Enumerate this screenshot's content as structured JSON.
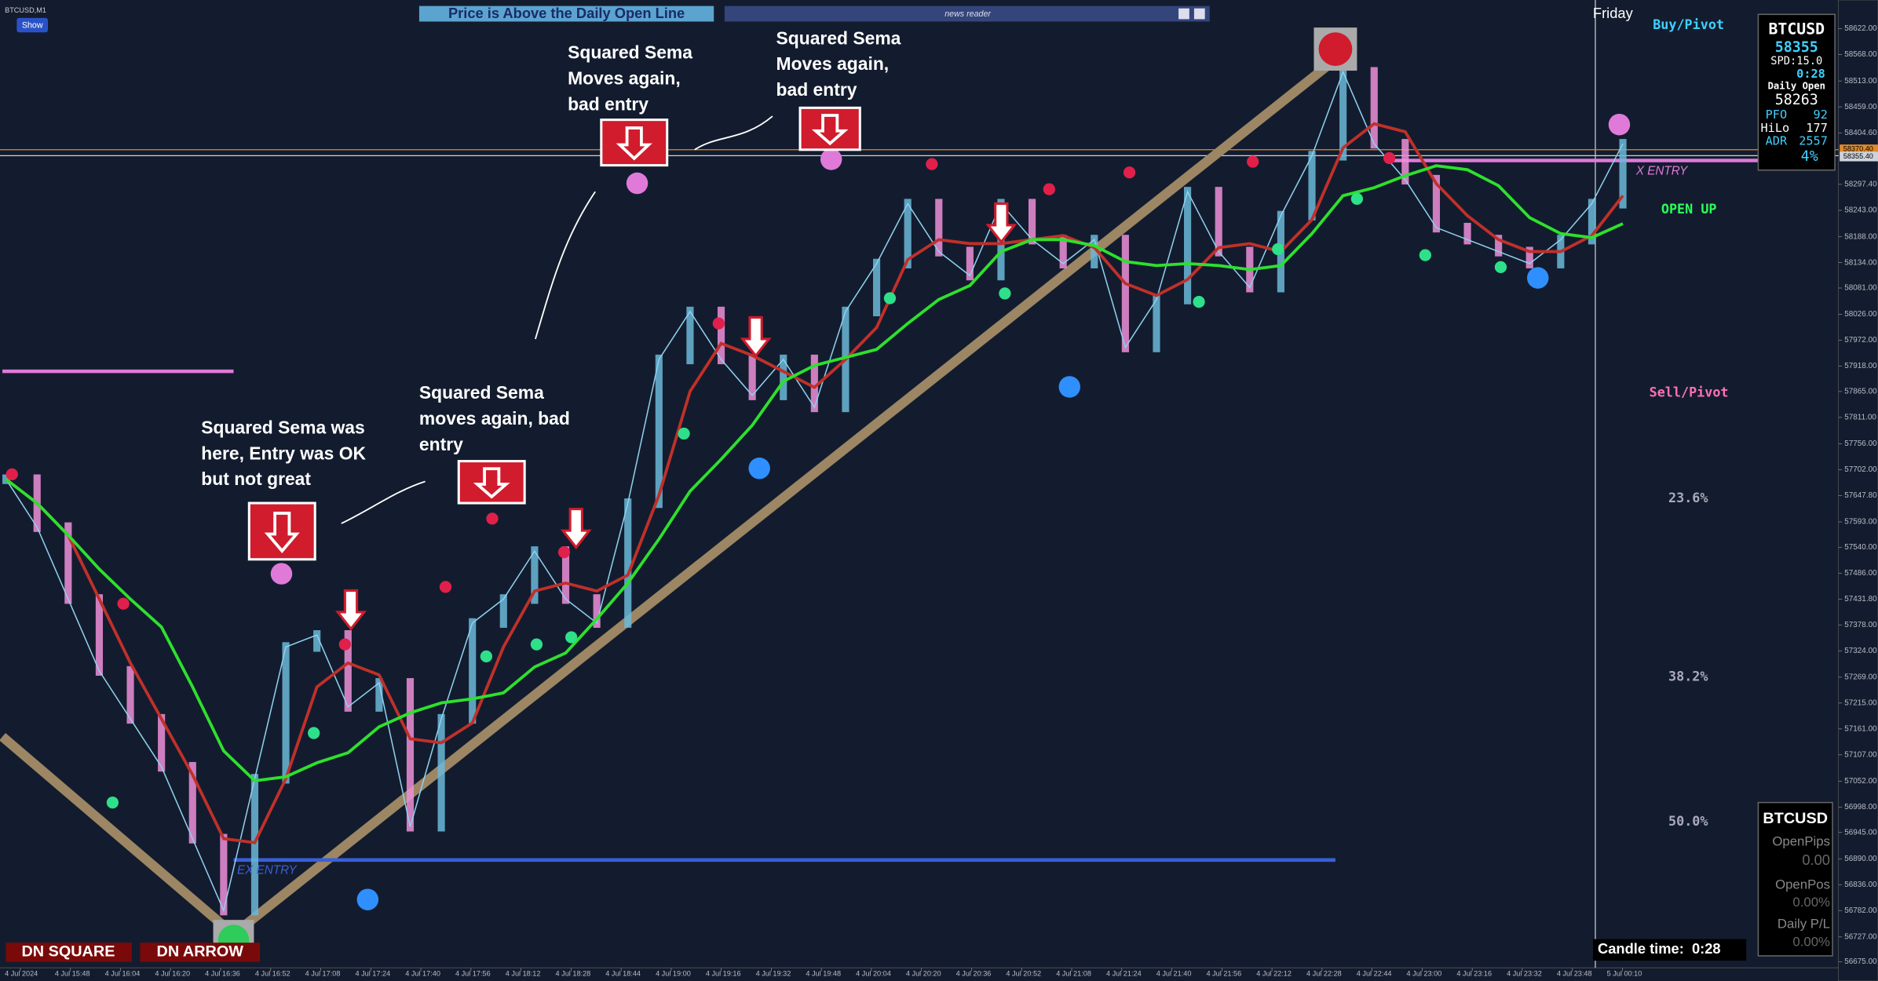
{
  "window": {
    "symbol": "BTCUSD,M1",
    "show_button": "Show",
    "banner": "Price is Above the Daily Open Line",
    "news_reader": "news reader",
    "day": "Friday"
  },
  "chart": {
    "price": [
      57682,
      57582,
      57432,
      57282,
      57182,
      57082,
      56932,
      56782,
      57057,
      57332,
      57357,
      57207,
      57257,
      56957,
      57182,
      57382,
      57432,
      57532,
      57432,
      57382,
      57632,
      57932,
      58032,
      57932,
      57857,
      57932,
      57832,
      58032,
      58132,
      58257,
      58157,
      58107,
      58257,
      58182,
      58132,
      58182,
      57957,
      58057,
      58282,
      58157,
      58082,
      58232,
      58357,
      58532,
      58382,
      58307,
      58207,
      58182,
      58157,
      58132,
      58182,
      58257,
      58382
    ],
    "yticks": [
      {
        "value": 58622,
        "label": "58622.00"
      },
      {
        "value": 58568,
        "label": "58568.00"
      },
      {
        "value": 58513,
        "label": "58513.00"
      },
      {
        "value": 58459,
        "label": "58459.00"
      },
      {
        "value": 58404.6,
        "label": "58404.60"
      },
      {
        "value": 58297.4,
        "label": "58297.40"
      },
      {
        "value": 58243,
        "label": "58243.00"
      },
      {
        "value": 58188,
        "label": "58188.00"
      },
      {
        "value": 58134,
        "label": "58134.00"
      },
      {
        "value": 58081,
        "label": "58081.00"
      },
      {
        "value": 58026,
        "label": "58026.00"
      },
      {
        "value": 57972,
        "label": "57972.00"
      },
      {
        "value": 57918,
        "label": "57918.00"
      },
      {
        "value": 57865,
        "label": "57865.00"
      },
      {
        "value": 57811,
        "label": "57811.00"
      },
      {
        "value": 57756,
        "label": "57756.00"
      },
      {
        "value": 57702,
        "label": "57702.00"
      },
      {
        "value": 57647.8,
        "label": "57647.80"
      },
      {
        "value": 57593,
        "label": "57593.00"
      },
      {
        "value": 57540,
        "label": "57540.00"
      },
      {
        "value": 57486,
        "label": "57486.00"
      },
      {
        "value": 57431.8,
        "label": "57431.80"
      },
      {
        "value": 57378,
        "label": "57378.00"
      },
      {
        "value": 57324,
        "label": "57324.00"
      },
      {
        "value": 57269,
        "label": "57269.00"
      },
      {
        "value": 57215,
        "label": "57215.00"
      },
      {
        "value": 57161,
        "label": "57161.00"
      },
      {
        "value": 57107,
        "label": "57107.00"
      },
      {
        "value": 57052,
        "label": "57052.00"
      },
      {
        "value": 56998,
        "label": "56998.00"
      },
      {
        "value": 56945,
        "label": "56945.00"
      },
      {
        "value": 56890,
        "label": "56890.00"
      },
      {
        "value": 56836,
        "label": "56836.00"
      },
      {
        "value": 56782,
        "label": "56782.00"
      },
      {
        "value": 56727,
        "label": "56727.00"
      },
      {
        "value": 56675,
        "label": "56675.00"
      }
    ],
    "xticks": [
      "4 Jul 2024",
      "4 Jul 15:48",
      "4 Jul 16:04",
      "4 Jul 16:20",
      "4 Jul 16:36",
      "4 Jul 16:52",
      "4 Jul 17:08",
      "4 Jul 17:24",
      "4 Jul 17:40",
      "4 Jul 17:56",
      "4 Jul 18:12",
      "4 Jul 18:28",
      "4 Jul 18:44",
      "4 Jul 19:00",
      "4 Jul 19:16",
      "4 Jul 19:32",
      "4 Jul 19:48",
      "4 Jul 20:04",
      "4 Jul 20:20",
      "4 Jul 20:36",
      "4 Jul 20:52",
      "4 Jul 21:08",
      "4 Jul 21:24",
      "4 Jul 21:40",
      "4 Jul 21:56",
      "4 Jul 22:12",
      "4 Jul 22:28",
      "4 Jul 22:44",
      "4 Jul 23:00",
      "4 Jul 23:16",
      "4 Jul 23:32",
      "4 Jul 23:48",
      "5 Jul 00:10"
    ],
    "price_tags": [
      {
        "value": 58370.4,
        "label": "58370.40"
      },
      {
        "value": 58355.4,
        "label": "58355.40"
      }
    ]
  },
  "levels": {
    "buy_pivot": "Buy/Pivot",
    "sell_pivot": "Sell/Pivot",
    "open_up": "OPEN UP",
    "ex_entry_right": "X ENTRY",
    "ex_entry_left": "EX ENTRY",
    "fib": [
      "23.6%",
      "38.2%",
      "50.0%"
    ]
  },
  "annotations": [
    [
      "Squared Sema was",
      "here, Entry was OK",
      "but not great"
    ],
    [
      "Squared Sema",
      "moves again, bad",
      "entry"
    ],
    [
      "Squared Sema",
      "Moves again,",
      "bad entry"
    ],
    [
      "Squared Sema",
      "Moves again,",
      "bad entry"
    ]
  ],
  "signals": {
    "dn_square": "DN SQUARE",
    "dn_arrow": "DN ARROW"
  },
  "info_panel": {
    "symbol": "BTCUSD",
    "price": "58355",
    "spread": "SPD:15.0",
    "timer": "0:28",
    "daily_open_label": "Daily Open",
    "daily_open": "58263",
    "pfo_label": "PFO",
    "pfo": "92",
    "hilo_label": "HiLo",
    "hilo": "177",
    "adr_label": "ADR",
    "adr": "2557",
    "adr_pct": "4%"
  },
  "trade_panel": {
    "symbol": "BTCUSD",
    "open_pips_label": "OpenPips",
    "open_pips": "0.00",
    "open_pos_label": "OpenPos",
    "open_pos": "0.00%",
    "daily_pl_label": "Daily P/L",
    "daily_pl": "0.00%"
  },
  "candle_time": "Candle time:  0:28"
}
